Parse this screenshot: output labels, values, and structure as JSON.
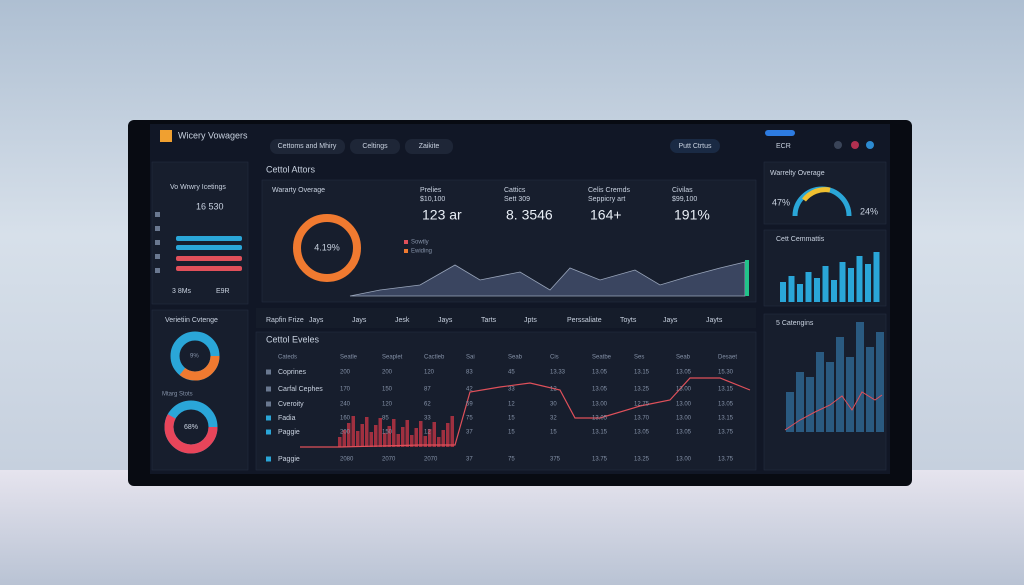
{
  "header": {
    "logo": "Wicery Vowagers",
    "tabs": [
      "Cettoms and Mhiry",
      "Celtings",
      "Zaikite"
    ],
    "status": "Putt Ctrtus",
    "right_label": "ECR"
  },
  "sidebar": {
    "title": "Vo Wrwry Icetings",
    "metric": "16 530",
    "foot": [
      "3 8Ms",
      "E9R"
    ],
    "donut_title": "Verietiin Cvtenge",
    "donut_value": "9%",
    "donut2_title": "Mtarg Stots",
    "donut2_value": "68%"
  },
  "overview": {
    "section": "Cettol Attors",
    "card_title": "Wararty Overage",
    "card_value": "4.19%",
    "legend": [
      "Sowtly",
      "Ewiding"
    ],
    "kpis": [
      {
        "label": "Prelies",
        "sub": "$10,100",
        "value": "123 ar"
      },
      {
        "label": "Cattics",
        "sub": "Sett 309",
        "value": "8. 3546"
      },
      {
        "label": "Celis Cremds",
        "sub": "Seppicry art",
        "value": "164+"
      },
      {
        "label": "Civilas",
        "sub": "$99,100",
        "value": "191%"
      }
    ]
  },
  "right": {
    "gauge_title": "Warrelty Overage",
    "gauge_left": "47%",
    "gauge_right": "24%",
    "bars_title": "Cett Cemmattis",
    "chart_title": "5 Catengins"
  },
  "table": {
    "tabs": [
      "Rapfin Frize",
      "Jays",
      "Jays",
      "Jesk",
      "Jays",
      "Tarts",
      "Jpts",
      "Perssaliate",
      "Toyts",
      "Jays",
      "Jayts"
    ],
    "title": "Cettol Eveles",
    "columns": [
      "Cateds",
      "Seatle",
      "Seaplet",
      "Cactleb",
      "Sai",
      "Seab",
      "Cis",
      "Seatbe",
      "Ses",
      "Seab",
      "Desaet"
    ],
    "rows": [
      [
        "Coprines",
        "200",
        "200",
        "120",
        "83",
        "45",
        "13.33",
        "13.05",
        "13.15",
        "13.05",
        "15.30"
      ],
      [
        "Carfal Cephes",
        "170",
        "150",
        "87",
        "42",
        "33",
        "12",
        "13.05",
        "13.25",
        "13.00",
        "13.15"
      ],
      [
        "Cveroity",
        "240",
        "120",
        "62",
        "59",
        "12",
        "30",
        "13.00",
        "12.75",
        "13.00",
        "13.05"
      ],
      [
        "Fadia",
        "160",
        "85",
        "33",
        "75",
        "15",
        "32",
        "13.05",
        "13.70",
        "13.00",
        "13.15"
      ],
      [
        "Paggie",
        "200",
        "150",
        "12",
        "37",
        "15",
        "15",
        "13.15",
        "13.05",
        "13.05",
        "13.75"
      ],
      [
        "Paggie",
        "2080",
        "2070",
        "2070",
        "37",
        "75",
        "375",
        "13.75",
        "13.25",
        "13.00",
        "13.75"
      ]
    ]
  }
}
